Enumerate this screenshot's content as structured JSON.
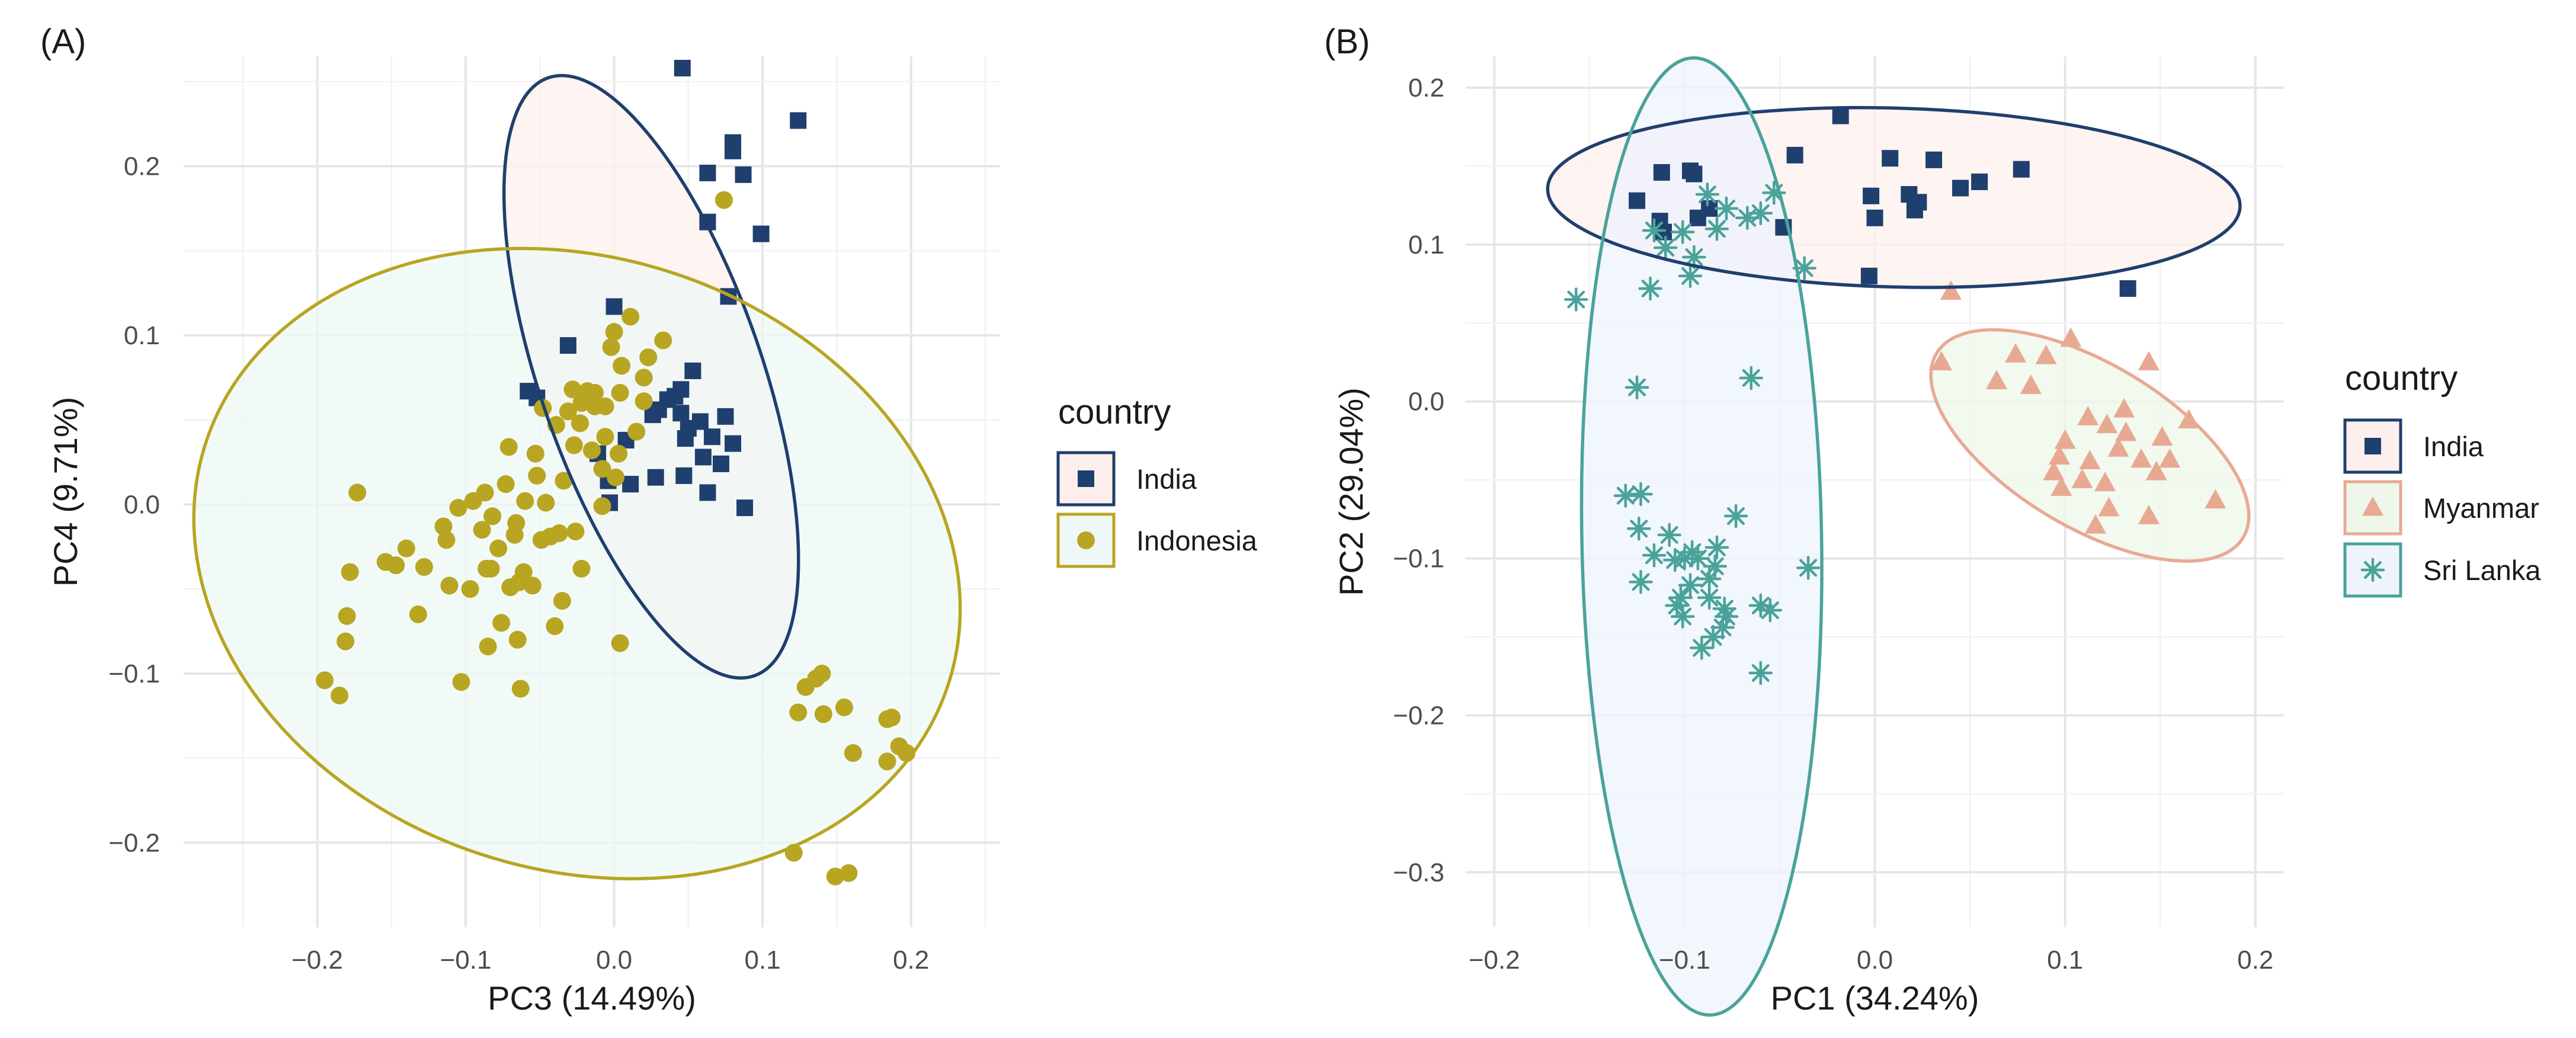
{
  "colors": {
    "India": "#1f3f6e",
    "Indonesia": "#b8a522",
    "Myanmar": "#e8a993",
    "Sri Lanka": "#4aa39a"
  },
  "fills": {
    "India": "#fdf0ec",
    "Indonesia": "#eef8f6",
    "Myanmar": "#eef7ea",
    "Sri Lanka": "#eef3fc"
  },
  "chart_data": [
    {
      "type": "scatter",
      "panel_tag": "(A)",
      "xlabel": "PC3 (14.49%)",
      "ylabel": "PC4 (9.71%)",
      "xlim": [
        -0.29,
        0.26
      ],
      "ylim": [
        -0.25,
        0.265
      ],
      "x_ticks": [
        -0.2,
        -0.1,
        0.0,
        0.1,
        0.2
      ],
      "x_tick_labels": [
        "−0.2",
        "−0.1",
        "0.0",
        "0.1",
        "0.2"
      ],
      "y_ticks": [
        -0.2,
        -0.1,
        0.0,
        0.1,
        0.2
      ],
      "y_tick_labels": [
        "−0.2",
        "−0.1",
        "0.0",
        "0.1",
        "0.2"
      ],
      "grid": true,
      "legend_title": "country",
      "legend_position": "right",
      "series": [
        {
          "name": "India",
          "marker": "square",
          "points": [
            [
              0.046,
              0.258
            ],
            [
              0.124,
              0.227
            ],
            [
              0.08,
              0.214
            ],
            [
              0.08,
              0.209
            ],
            [
              0.063,
              0.196
            ],
            [
              0.087,
              0.195
            ],
            [
              0.063,
              0.167
            ],
            [
              0.099,
              0.16
            ],
            [
              0.077,
              0.123
            ],
            [
              0.0,
              0.117
            ],
            [
              -0.031,
              0.094
            ],
            [
              0.053,
              0.079
            ],
            [
              -0.058,
              0.067
            ],
            [
              -0.052,
              0.063
            ],
            [
              0.045,
              0.068
            ],
            [
              0.041,
              0.064
            ],
            [
              0.036,
              0.062
            ],
            [
              0.03,
              0.056
            ],
            [
              0.026,
              0.053
            ],
            [
              0.045,
              0.054
            ],
            [
              0.075,
              0.052
            ],
            [
              0.058,
              0.049
            ],
            [
              0.008,
              0.038
            ],
            [
              -0.011,
              0.03
            ],
            [
              0.05,
              0.045
            ],
            [
              0.048,
              0.039
            ],
            [
              0.066,
              0.04
            ],
            [
              0.08,
              0.036
            ],
            [
              0.06,
              0.028
            ],
            [
              0.072,
              0.024
            ],
            [
              0.047,
              0.017
            ],
            [
              0.028,
              0.016
            ],
            [
              -0.004,
              0.014
            ],
            [
              0.011,
              0.012
            ],
            [
              0.063,
              0.007
            ],
            [
              0.088,
              -0.002
            ],
            [
              -0.003,
              0.001
            ]
          ],
          "ellipse": {
            "center": [
              0.025,
              0.0755
            ],
            "rx": 0.075,
            "ry": 0.187,
            "angle_deg": -19
          }
        },
        {
          "name": "Indonesia",
          "marker": "circle",
          "points": [
            [
              0.074,
              0.18
            ],
            [
              0.011,
              0.111
            ],
            [
              0.0,
              0.102
            ],
            [
              0.033,
              0.097
            ],
            [
              -0.002,
              0.093
            ],
            [
              0.023,
              0.087
            ],
            [
              0.005,
              0.082
            ],
            [
              0.02,
              0.075
            ],
            [
              -0.018,
              0.067
            ],
            [
              -0.028,
              0.068
            ],
            [
              0.004,
              0.066
            ],
            [
              -0.013,
              0.066
            ],
            [
              -0.022,
              0.06
            ],
            [
              -0.013,
              0.058
            ],
            [
              -0.006,
              0.058
            ],
            [
              0.02,
              0.061
            ],
            [
              0.015,
              0.043
            ],
            [
              -0.048,
              0.057
            ],
            [
              -0.031,
              0.055
            ],
            [
              -0.023,
              0.048
            ],
            [
              -0.039,
              0.047
            ],
            [
              -0.006,
              0.04
            ],
            [
              -0.015,
              0.032
            ],
            [
              0.003,
              0.03
            ],
            [
              -0.027,
              0.035
            ],
            [
              -0.071,
              0.034
            ],
            [
              -0.053,
              0.03
            ],
            [
              -0.008,
              0.021
            ],
            [
              -0.052,
              0.017
            ],
            [
              -0.034,
              0.014
            ],
            [
              0.001,
              0.016
            ],
            [
              -0.073,
              0.012
            ],
            [
              -0.087,
              0.007
            ],
            [
              -0.095,
              0.002
            ],
            [
              -0.06,
              0.002
            ],
            [
              -0.046,
              0.001
            ],
            [
              -0.008,
              -0.001
            ],
            [
              -0.173,
              0.007
            ],
            [
              -0.105,
              -0.002
            ],
            [
              -0.115,
              -0.013
            ],
            [
              -0.082,
              -0.007
            ],
            [
              -0.066,
              -0.011
            ],
            [
              -0.037,
              -0.017
            ],
            [
              -0.026,
              -0.016
            ],
            [
              -0.043,
              -0.019
            ],
            [
              -0.049,
              -0.021
            ],
            [
              -0.067,
              -0.018
            ],
            [
              -0.089,
              -0.015
            ],
            [
              -0.078,
              -0.026
            ],
            [
              -0.113,
              -0.021
            ],
            [
              -0.14,
              -0.026
            ],
            [
              -0.154,
              -0.034
            ],
            [
              -0.147,
              -0.036
            ],
            [
              -0.178,
              -0.04
            ],
            [
              -0.128,
              -0.037
            ],
            [
              -0.086,
              -0.038
            ],
            [
              -0.061,
              -0.04
            ],
            [
              -0.07,
              -0.049
            ],
            [
              -0.083,
              -0.038
            ],
            [
              -0.055,
              -0.048
            ],
            [
              -0.022,
              -0.038
            ],
            [
              -0.035,
              -0.057
            ],
            [
              -0.111,
              -0.048
            ],
            [
              -0.097,
              -0.05
            ],
            [
              -0.064,
              -0.046
            ],
            [
              -0.132,
              -0.065
            ],
            [
              -0.18,
              -0.066
            ],
            [
              -0.076,
              -0.07
            ],
            [
              -0.04,
              -0.072
            ],
            [
              -0.085,
              -0.084
            ],
            [
              -0.181,
              -0.081
            ],
            [
              -0.065,
              -0.08
            ],
            [
              0.004,
              -0.082
            ],
            [
              -0.103,
              -0.105
            ],
            [
              -0.063,
              -0.109
            ],
            [
              -0.195,
              -0.104
            ],
            [
              -0.185,
              -0.113
            ],
            [
              0.14,
              -0.1
            ],
            [
              0.136,
              -0.103
            ],
            [
              0.129,
              -0.108
            ],
            [
              0.155,
              -0.12
            ],
            [
              0.184,
              -0.127
            ],
            [
              0.187,
              -0.126
            ],
            [
              0.141,
              -0.124
            ],
            [
              0.124,
              -0.123
            ],
            [
              0.192,
              -0.143
            ],
            [
              0.161,
              -0.147
            ],
            [
              0.197,
              -0.147
            ],
            [
              0.184,
              -0.152
            ],
            [
              0.121,
              -0.206
            ],
            [
              0.158,
              -0.218
            ],
            [
              0.149,
              -0.22
            ]
          ],
          "ellipse": {
            "center": [
              -0.025,
              -0.035
            ],
            "rx": 0.263,
            "ry": 0.181,
            "angle_deg": 18
          }
        }
      ]
    },
    {
      "type": "scatter",
      "panel_tag": "(B)",
      "xlabel": "PC1 (34.24%)",
      "ylabel": "PC2 (29.04%)",
      "xlim": [
        -0.215,
        0.215
      ],
      "ylim": [
        -0.335,
        0.22
      ],
      "x_ticks": [
        -0.2,
        -0.1,
        0.0,
        0.1,
        0.2
      ],
      "x_tick_labels": [
        "−0.2",
        "−0.1",
        "0.0",
        "0.1",
        "0.2"
      ],
      "y_ticks": [
        -0.3,
        -0.2,
        -0.1,
        0.0,
        0.1,
        0.2
      ],
      "y_tick_labels": [
        "−0.3",
        "−0.2",
        "−0.1",
        "0.0",
        "0.1",
        "0.2"
      ],
      "grid": true,
      "legend_title": "country",
      "legend_position": "right",
      "series": [
        {
          "name": "India",
          "marker": "square",
          "points": [
            [
              -0.018,
              0.182
            ],
            [
              -0.042,
              0.157
            ],
            [
              0.008,
              0.155
            ],
            [
              0.031,
              0.154
            ],
            [
              -0.097,
              0.147
            ],
            [
              -0.112,
              0.146
            ],
            [
              -0.095,
              0.145
            ],
            [
              0.077,
              0.148
            ],
            [
              0.055,
              0.14
            ],
            [
              0.045,
              0.136
            ],
            [
              -0.002,
              0.131
            ],
            [
              0.018,
              0.132
            ],
            [
              0.023,
              0.127
            ],
            [
              -0.125,
              0.128
            ],
            [
              0.021,
              0.122
            ],
            [
              -0.087,
              0.123
            ],
            [
              -0.093,
              0.117
            ],
            [
              -0.113,
              0.115
            ],
            [
              0.0,
              0.117
            ],
            [
              -0.048,
              0.111
            ],
            [
              -0.111,
              0.108
            ],
            [
              -0.003,
              0.08
            ],
            [
              0.133,
              0.072
            ]
          ],
          "ellipse": {
            "center": [
              0.01,
              0.13
            ],
            "rx": 0.182,
            "ry": 0.057,
            "angle_deg": 1.5
          }
        },
        {
          "name": "Myanmar",
          "marker": "triangle",
          "points": [
            [
              0.04,
              0.07
            ],
            [
              0.103,
              0.04
            ],
            [
              0.074,
              0.03
            ],
            [
              0.09,
              0.029
            ],
            [
              0.035,
              0.025
            ],
            [
              0.144,
              0.025
            ],
            [
              0.064,
              0.013
            ],
            [
              0.082,
              0.01
            ],
            [
              0.131,
              -0.005
            ],
            [
              0.165,
              -0.012
            ],
            [
              0.112,
              -0.01
            ],
            [
              0.122,
              -0.015
            ],
            [
              0.132,
              -0.02
            ],
            [
              0.151,
              -0.023
            ],
            [
              0.1,
              -0.025
            ],
            [
              0.128,
              -0.03
            ],
            [
              0.097,
              -0.035
            ],
            [
              0.14,
              -0.037
            ],
            [
              0.113,
              -0.038
            ],
            [
              0.155,
              -0.037
            ],
            [
              0.094,
              -0.045
            ],
            [
              0.148,
              -0.045
            ],
            [
              0.109,
              -0.05
            ],
            [
              0.121,
              -0.052
            ],
            [
              0.098,
              -0.055
            ],
            [
              0.179,
              -0.063
            ],
            [
              0.123,
              -0.068
            ],
            [
              0.144,
              -0.073
            ],
            [
              0.116,
              -0.079
            ]
          ],
          "ellipse": {
            "center": [
              0.113,
              -0.028
            ],
            "rx": 0.094,
            "ry": 0.052,
            "angle_deg": 31
          }
        },
        {
          "name": "Sri Lanka",
          "marker": "asterisk",
          "points": [
            [
              -0.078,
              0.123
            ],
            [
              -0.088,
              0.132
            ],
            [
              -0.053,
              0.133
            ],
            [
              -0.116,
              0.109
            ],
            [
              -0.101,
              0.108
            ],
            [
              -0.06,
              0.12
            ],
            [
              -0.083,
              0.11
            ],
            [
              -0.095,
              0.092
            ],
            [
              -0.11,
              0.098
            ],
            [
              -0.067,
              0.117
            ],
            [
              -0.037,
              0.085
            ],
            [
              -0.097,
              0.08
            ],
            [
              -0.157,
              0.065
            ],
            [
              -0.118,
              0.072
            ],
            [
              -0.065,
              0.015
            ],
            [
              -0.125,
              0.009
            ],
            [
              -0.131,
              -0.06
            ],
            [
              -0.123,
              -0.059
            ],
            [
              -0.124,
              -0.081
            ],
            [
              -0.073,
              -0.073
            ],
            [
              -0.108,
              -0.085
            ],
            [
              -0.096,
              -0.096
            ],
            [
              -0.116,
              -0.098
            ],
            [
              -0.093,
              -0.1
            ],
            [
              -0.105,
              -0.101
            ],
            [
              -0.1,
              -0.1
            ],
            [
              -0.083,
              -0.093
            ],
            [
              -0.084,
              -0.105
            ],
            [
              -0.097,
              -0.117
            ],
            [
              -0.102,
              -0.125
            ],
            [
              -0.123,
              -0.115
            ],
            [
              -0.087,
              -0.113
            ],
            [
              -0.035,
              -0.106
            ],
            [
              -0.087,
              -0.125
            ],
            [
              -0.104,
              -0.13
            ],
            [
              -0.079,
              -0.132
            ],
            [
              -0.078,
              -0.137
            ],
            [
              -0.06,
              -0.13
            ],
            [
              -0.055,
              -0.133
            ],
            [
              -0.101,
              -0.137
            ],
            [
              -0.08,
              -0.144
            ],
            [
              -0.085,
              -0.15
            ],
            [
              -0.091,
              -0.157
            ],
            [
              -0.06,
              -0.173
            ]
          ],
          "ellipse": {
            "center": [
              -0.091,
              -0.086
            ],
            "rx": 0.063,
            "ry": 0.305,
            "angle_deg": -1
          }
        }
      ]
    }
  ]
}
